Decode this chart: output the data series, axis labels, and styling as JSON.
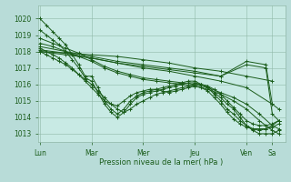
{
  "background_color": "#b8dcd8",
  "plot_bg_color": "#c8eae4",
  "grid_color": "#90b8a8",
  "line_color": "#1a5c1a",
  "marker_color": "#1a5c1a",
  "xlabel": "Pression niveau de la mer( hPa )",
  "ylim": [
    1012.5,
    1020.8
  ],
  "yticks": [
    1013,
    1014,
    1015,
    1016,
    1017,
    1018,
    1019,
    1020
  ],
  "day_labels": [
    "Lun",
    "Mar",
    "Mer",
    "Jeu",
    "Ven",
    "Sa"
  ],
  "day_positions": [
    0,
    24,
    48,
    72,
    96,
    108
  ],
  "xlim": [
    -1,
    114
  ],
  "series": [
    {
      "x": [
        0,
        3,
        6,
        9,
        12,
        15,
        18,
        21,
        24,
        27,
        30,
        33,
        36,
        39,
        42,
        45,
        48,
        51,
        54,
        57,
        60,
        63,
        66,
        69,
        72,
        75,
        78,
        81,
        84,
        87,
        90,
        93,
        96,
        99,
        102,
        105,
        108,
        111
      ],
      "y": [
        1020.0,
        1019.6,
        1019.2,
        1018.8,
        1018.4,
        1017.8,
        1017.2,
        1016.5,
        1016.5,
        1015.8,
        1015.0,
        1014.5,
        1014.2,
        1014.5,
        1015.0,
        1015.3,
        1015.5,
        1015.6,
        1015.7,
        1015.8,
        1015.9,
        1016.0,
        1016.1,
        1016.2,
        1016.2,
        1016.0,
        1015.9,
        1015.5,
        1015.2,
        1014.8,
        1014.5,
        1014.0,
        1013.5,
        1013.2,
        1013.0,
        1013.0,
        1013.0,
        1013.2
      ]
    },
    {
      "x": [
        0,
        3,
        6,
        9,
        12,
        15,
        18,
        21,
        24,
        27,
        30,
        33,
        36,
        39,
        42,
        45,
        48,
        51,
        54,
        57,
        60,
        63,
        66,
        69,
        72,
        75,
        78,
        81,
        84,
        87,
        90,
        93,
        96,
        99,
        102,
        105,
        108,
        111
      ],
      "y": [
        1019.3,
        1019.0,
        1018.7,
        1018.4,
        1018.0,
        1017.5,
        1017.0,
        1016.4,
        1016.2,
        1015.5,
        1014.8,
        1014.3,
        1014.0,
        1014.3,
        1014.8,
        1015.2,
        1015.4,
        1015.5,
        1015.6,
        1015.7,
        1015.8,
        1015.9,
        1016.0,
        1016.1,
        1016.1,
        1016.0,
        1015.8,
        1015.4,
        1015.0,
        1014.5,
        1014.2,
        1013.8,
        1013.5,
        1013.3,
        1013.2,
        1013.3,
        1013.5,
        1013.8
      ]
    },
    {
      "x": [
        0,
        6,
        12,
        18,
        24,
        30,
        36,
        42,
        48,
        54,
        60,
        66,
        72,
        78,
        84,
        90,
        96,
        102,
        108,
        111
      ],
      "y": [
        1018.8,
        1018.5,
        1018.2,
        1017.9,
        1017.5,
        1017.1,
        1016.8,
        1016.6,
        1016.4,
        1016.3,
        1016.2,
        1016.1,
        1016.0,
        1015.8,
        1015.5,
        1015.2,
        1014.8,
        1014.2,
        1013.5,
        1013.3
      ]
    },
    {
      "x": [
        0,
        6,
        12,
        18,
        24,
        30,
        36,
        42,
        48,
        54,
        60,
        66,
        72,
        78,
        84,
        90,
        96,
        102,
        108,
        111
      ],
      "y": [
        1018.5,
        1018.3,
        1018.0,
        1017.7,
        1017.4,
        1017.0,
        1016.7,
        1016.5,
        1016.3,
        1016.2,
        1016.1,
        1016.0,
        1015.9,
        1015.7,
        1015.4,
        1015.0,
        1014.5,
        1013.8,
        1013.2,
        1013.0
      ]
    },
    {
      "x": [
        0,
        12,
        24,
        36,
        48,
        60,
        72,
        84,
        96,
        105,
        108,
        111
      ],
      "y": [
        1018.3,
        1018.0,
        1017.7,
        1017.4,
        1017.2,
        1017.0,
        1016.8,
        1016.5,
        1017.2,
        1017.0,
        1014.2,
        1013.8
      ]
    },
    {
      "x": [
        0,
        12,
        24,
        36,
        48,
        60,
        72,
        84,
        96,
        105,
        108,
        111
      ],
      "y": [
        1018.1,
        1017.9,
        1017.6,
        1017.3,
        1017.1,
        1016.9,
        1016.7,
        1016.5,
        1017.4,
        1017.2,
        1014.8,
        1014.5
      ]
    },
    {
      "x": [
        0,
        3,
        6,
        9,
        12,
        15,
        18,
        21,
        24,
        27,
        30,
        33,
        36,
        39,
        42,
        45,
        48,
        51,
        54,
        57,
        60,
        63,
        66,
        69,
        72,
        75,
        78,
        81,
        84,
        87,
        90,
        93,
        96,
        99,
        102,
        105,
        108,
        111
      ],
      "y": [
        1018.0,
        1017.8,
        1017.6,
        1017.4,
        1017.2,
        1016.9,
        1016.6,
        1016.3,
        1016.0,
        1015.6,
        1015.2,
        1014.8,
        1014.5,
        1014.3,
        1014.5,
        1014.8,
        1015.0,
        1015.2,
        1015.4,
        1015.5,
        1015.6,
        1015.7,
        1015.8,
        1015.9,
        1016.0,
        1016.0,
        1015.9,
        1015.7,
        1015.4,
        1015.0,
        1014.6,
        1014.2,
        1013.8,
        1013.6,
        1013.5,
        1013.5,
        1013.6,
        1013.8
      ]
    },
    {
      "x": [
        0,
        3,
        6,
        9,
        12,
        15,
        18,
        21,
        24,
        27,
        30,
        33,
        36,
        39,
        42,
        45,
        48,
        51,
        54,
        57,
        60,
        63,
        66,
        69,
        72,
        75,
        78,
        81,
        84,
        87,
        90,
        93,
        96,
        99,
        102,
        105,
        108,
        111
      ],
      "y": [
        1018.2,
        1018.0,
        1017.8,
        1017.6,
        1017.3,
        1017.0,
        1016.6,
        1016.2,
        1015.8,
        1015.4,
        1015.0,
        1014.8,
        1014.7,
        1015.0,
        1015.3,
        1015.5,
        1015.6,
        1015.7,
        1015.7,
        1015.6,
        1015.5,
        1015.6,
        1015.7,
        1015.8,
        1015.9,
        1015.8,
        1015.6,
        1015.2,
        1014.8,
        1014.3,
        1013.9,
        1013.6,
        1013.4,
        1013.3,
        1013.3,
        1013.3,
        1013.4,
        1013.6
      ]
    },
    {
      "x": [
        0,
        12,
        24,
        36,
        48,
        60,
        72,
        84,
        96,
        108
      ],
      "y": [
        1018.0,
        1017.9,
        1017.8,
        1017.7,
        1017.5,
        1017.3,
        1017.0,
        1016.8,
        1016.5,
        1016.2
      ]
    },
    {
      "x": [
        0,
        12,
        24,
        36,
        48,
        60,
        72,
        84,
        96,
        108
      ],
      "y": [
        1018.0,
        1017.8,
        1017.6,
        1017.3,
        1017.0,
        1016.8,
        1016.5,
        1016.2,
        1015.8,
        1014.8
      ]
    }
  ]
}
